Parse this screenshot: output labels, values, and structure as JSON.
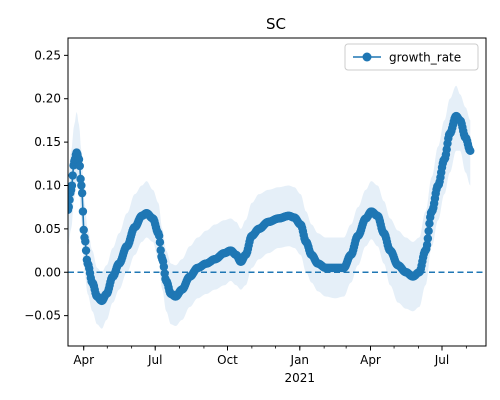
{
  "chart_data": {
    "type": "line",
    "title": "SC",
    "xlabel": "",
    "ylabel": "",
    "x_range": [
      "2020-03-12",
      "2021-08-26"
    ],
    "ylim": [
      -0.085,
      0.27
    ],
    "x_ticks": [
      {
        "date": "2020-04-01",
        "label": "Apr"
      },
      {
        "date": "2020-07-01",
        "label": "Jul"
      },
      {
        "date": "2020-10-01",
        "label": "Oct"
      },
      {
        "date": "2021-01-01",
        "label": "Jan"
      },
      {
        "date": "2021-04-01",
        "label": "Apr"
      },
      {
        "date": "2021-07-01",
        "label": "Jul"
      }
    ],
    "x_year_label": {
      "date": "2021-01-01",
      "label": "2021"
    },
    "y_ticks": [
      -0.05,
      0.0,
      0.05,
      0.1,
      0.15,
      0.2,
      0.25
    ],
    "y_tick_labels": [
      "−0.05",
      "0.00",
      "0.05",
      "0.10",
      "0.15",
      "0.20",
      "0.25"
    ],
    "reference_line": {
      "y": 0.0,
      "style": "dashed",
      "color": "#1f77b4"
    },
    "legend": {
      "position": "top-right",
      "entries": [
        "growth_rate"
      ]
    },
    "series": [
      {
        "name": "growth_rate",
        "color": "#1f77b4",
        "band_color": "#dce9f5",
        "points": [
          [
            "2020-03-12",
            0.072,
            0.03,
            0.11
          ],
          [
            "2020-03-16",
            0.095,
            0.05,
            0.14
          ],
          [
            "2020-03-20",
            0.128,
            0.085,
            0.17
          ],
          [
            "2020-03-23",
            0.138,
            0.105,
            0.185
          ],
          [
            "2020-03-26",
            0.13,
            0.095,
            0.17
          ],
          [
            "2020-03-29",
            0.1,
            0.06,
            0.14
          ],
          [
            "2020-04-02",
            0.04,
            0.0,
            0.08
          ],
          [
            "2020-04-06",
            0.01,
            -0.025,
            0.05
          ],
          [
            "2020-04-12",
            -0.012,
            -0.045,
            0.025
          ],
          [
            "2020-04-18",
            -0.028,
            -0.06,
            0.005
          ],
          [
            "2020-04-24",
            -0.033,
            -0.065,
            0.0
          ],
          [
            "2020-04-30",
            -0.025,
            -0.055,
            0.008
          ],
          [
            "2020-05-08",
            -0.005,
            -0.035,
            0.028
          ],
          [
            "2020-05-16",
            0.01,
            -0.02,
            0.045
          ],
          [
            "2020-05-26",
            0.03,
            0.0,
            0.068
          ],
          [
            "2020-06-05",
            0.052,
            0.02,
            0.09
          ],
          [
            "2020-06-14",
            0.065,
            0.035,
            0.1
          ],
          [
            "2020-06-20",
            0.068,
            0.04,
            0.105
          ],
          [
            "2020-06-28",
            0.062,
            0.035,
            0.095
          ],
          [
            "2020-07-05",
            0.045,
            0.015,
            0.08
          ],
          [
            "2020-07-10",
            0.015,
            -0.02,
            0.05
          ],
          [
            "2020-07-15",
            -0.01,
            -0.045,
            0.025
          ],
          [
            "2020-07-21",
            -0.025,
            -0.06,
            0.01
          ],
          [
            "2020-07-27",
            -0.028,
            -0.062,
            0.008
          ],
          [
            "2020-08-04",
            -0.02,
            -0.055,
            0.015
          ],
          [
            "2020-08-14",
            -0.005,
            -0.04,
            0.03
          ],
          [
            "2020-08-24",
            0.005,
            -0.03,
            0.04
          ],
          [
            "2020-09-04",
            0.01,
            -0.025,
            0.048
          ],
          [
            "2020-09-15",
            0.015,
            -0.02,
            0.055
          ],
          [
            "2020-09-27",
            0.022,
            -0.015,
            0.06
          ],
          [
            "2020-10-05",
            0.025,
            -0.01,
            0.062
          ],
          [
            "2020-10-12",
            0.02,
            -0.015,
            0.058
          ],
          [
            "2020-10-18",
            0.012,
            -0.02,
            0.05
          ],
          [
            "2020-10-24",
            0.02,
            -0.015,
            0.06
          ],
          [
            "2020-11-01",
            0.042,
            0.005,
            0.08
          ],
          [
            "2020-11-10",
            0.05,
            0.015,
            0.09
          ],
          [
            "2020-11-22",
            0.058,
            0.022,
            0.095
          ],
          [
            "2020-12-05",
            0.062,
            0.028,
            0.098
          ],
          [
            "2020-12-18",
            0.065,
            0.03,
            0.1
          ],
          [
            "2020-12-25",
            0.063,
            0.028,
            0.098
          ],
          [
            "2021-01-02",
            0.055,
            0.02,
            0.09
          ],
          [
            "2021-01-09",
            0.035,
            0.0,
            0.07
          ],
          [
            "2021-01-16",
            0.02,
            -0.012,
            0.055
          ],
          [
            "2021-01-24",
            0.01,
            -0.022,
            0.045
          ],
          [
            "2021-02-03",
            0.005,
            -0.028,
            0.04
          ],
          [
            "2021-02-15",
            0.005,
            -0.03,
            0.04
          ],
          [
            "2021-02-26",
            0.005,
            -0.028,
            0.04
          ],
          [
            "2021-03-07",
            0.02,
            -0.012,
            0.055
          ],
          [
            "2021-03-16",
            0.042,
            0.008,
            0.075
          ],
          [
            "2021-03-26",
            0.062,
            0.03,
            0.095
          ],
          [
            "2021-04-02",
            0.07,
            0.038,
            0.105
          ],
          [
            "2021-04-10",
            0.065,
            0.03,
            0.1
          ],
          [
            "2021-04-18",
            0.045,
            0.01,
            0.082
          ],
          [
            "2021-04-26",
            0.025,
            -0.015,
            0.062
          ],
          [
            "2021-05-06",
            0.008,
            -0.035,
            0.048
          ],
          [
            "2021-05-16",
            0.0,
            -0.042,
            0.04
          ],
          [
            "2021-05-25",
            -0.005,
            -0.045,
            0.035
          ],
          [
            "2021-06-02",
            0.0,
            -0.04,
            0.04
          ],
          [
            "2021-06-10",
            0.025,
            -0.015,
            0.07
          ],
          [
            "2021-06-18",
            0.07,
            0.03,
            0.11
          ],
          [
            "2021-06-26",
            0.1,
            0.06,
            0.145
          ],
          [
            "2021-07-04",
            0.13,
            0.09,
            0.175
          ],
          [
            "2021-07-11",
            0.16,
            0.115,
            0.2
          ],
          [
            "2021-07-19",
            0.18,
            0.14,
            0.215
          ],
          [
            "2021-07-24",
            0.175,
            0.14,
            0.205
          ],
          [
            "2021-07-31",
            0.155,
            0.115,
            0.19
          ],
          [
            "2021-08-06",
            0.14,
            0.1,
            0.175
          ]
        ]
      }
    ]
  }
}
